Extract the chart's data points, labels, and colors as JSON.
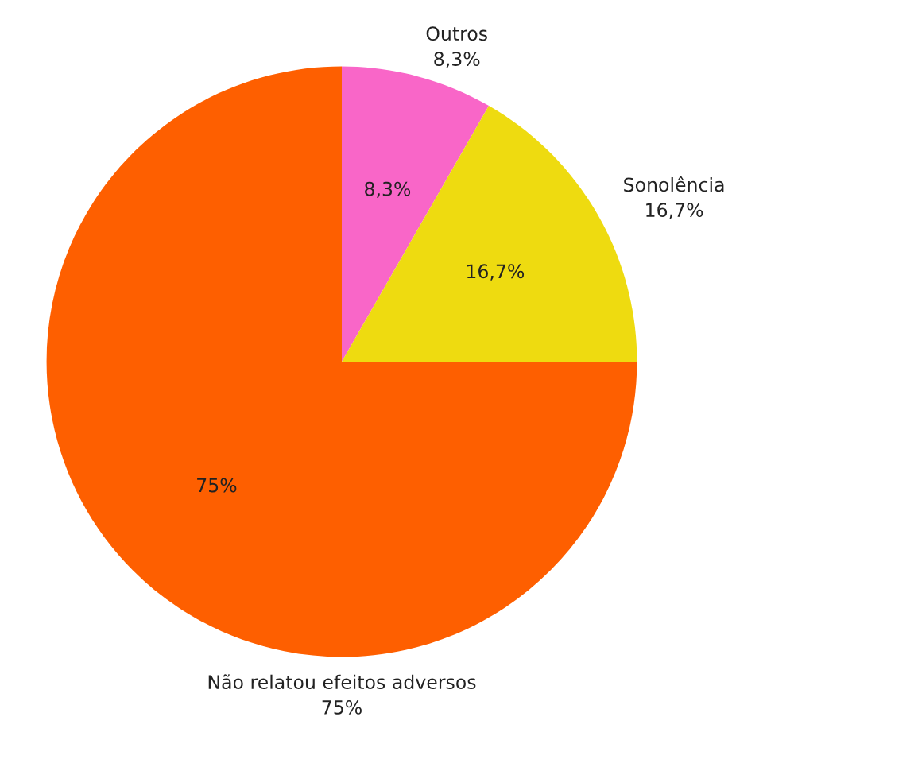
{
  "chart_data": {
    "type": "pie",
    "categories": [
      "Outros",
      "Sonolência",
      "Não relatou efeitos adversos"
    ],
    "values": [
      8.3,
      16.7,
      75
    ],
    "colors": [
      "#f966c8",
      "#eedb10",
      "#fe5f00"
    ],
    "value_labels": [
      "8,3%",
      "16,7%",
      "75%"
    ],
    "legend": false
  }
}
